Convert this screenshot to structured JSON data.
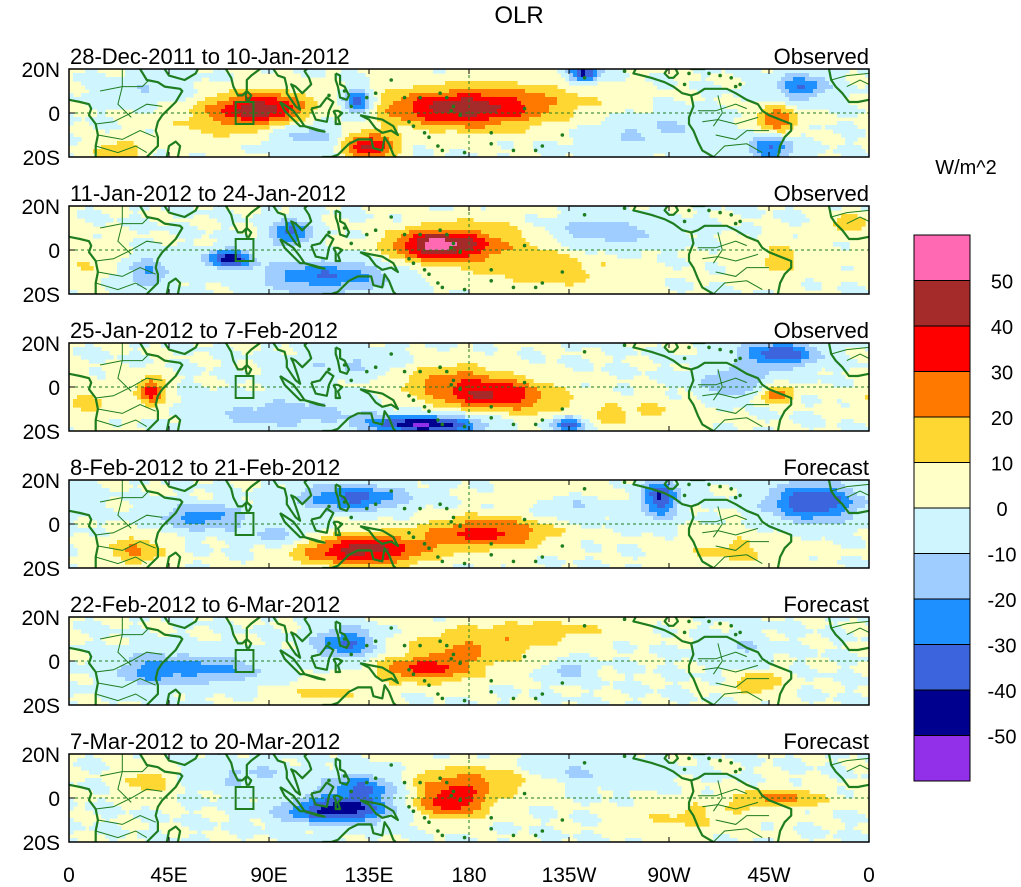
{
  "chart_data": {
    "type": "heatmap",
    "title": "OLR",
    "units": "W/m^2",
    "lat_range": [
      -20,
      20
    ],
    "lon_range": [
      0,
      360
    ],
    "lat_ticks": [
      "20N",
      "0",
      "20S"
    ],
    "lon_ticks": [
      {
        "lon": 0,
        "label": "0"
      },
      {
        "lon": 45,
        "label": "45E"
      },
      {
        "lon": 90,
        "label": "90E"
      },
      {
        "lon": 135,
        "label": "135E"
      },
      {
        "lon": 180,
        "label": "180"
      },
      {
        "lon": 225,
        "label": "135W"
      },
      {
        "lon": 270,
        "label": "90W"
      },
      {
        "lon": 315,
        "label": "45W"
      },
      {
        "lon": 360,
        "label": "0"
      }
    ],
    "colorbar": {
      "levels": [
        -50,
        -40,
        -30,
        -20,
        -10,
        0,
        10,
        20,
        30,
        40,
        50
      ],
      "colors": [
        "#9130e8",
        "#00008f",
        "#3c64dc",
        "#1e90ff",
        "#9fcdff",
        "#cff5ff",
        "#ffffc8",
        "#ffd732",
        "#ff7800",
        "#ff0000",
        "#a52a2a",
        "#ff69b4"
      ]
    },
    "reference_box": {
      "lon": [
        75,
        83
      ],
      "lat": [
        -5,
        5
      ]
    },
    "panels": [
      {
        "period": "28-Dec-2011 to 10-Jan-2012",
        "status": "Observed",
        "anomalies": [
          {
            "lon": 88,
            "lat": 2,
            "value": 40,
            "sx": 14,
            "sy": 5
          },
          {
            "lon": 70,
            "lat": -2,
            "value": 15,
            "sx": 20,
            "sy": 8
          },
          {
            "lon": 172,
            "lat": 2,
            "value": 35,
            "sx": 24,
            "sy": 6
          },
          {
            "lon": 200,
            "lat": 4,
            "value": 18,
            "sx": 30,
            "sy": 8
          },
          {
            "lon": 135,
            "lat": -15,
            "value": 45,
            "sx": 8,
            "sy": 4
          },
          {
            "lon": 22,
            "lat": -17,
            "value": 20,
            "sx": 8,
            "sy": 3
          },
          {
            "lon": 232,
            "lat": 18,
            "value": -45,
            "sx": 5,
            "sy": 3
          },
          {
            "lon": 130,
            "lat": 5,
            "value": -40,
            "sx": 5,
            "sy": 4
          },
          {
            "lon": 318,
            "lat": -3,
            "value": 30,
            "sx": 7,
            "sy": 4
          },
          {
            "lon": 316,
            "lat": -16,
            "value": -30,
            "sx": 7,
            "sy": 4
          },
          {
            "lon": 330,
            "lat": 12,
            "value": -30,
            "sx": 8,
            "sy": 4
          },
          {
            "lon": 105,
            "lat": -10,
            "value": -15,
            "sx": 14,
            "sy": 6
          },
          {
            "lon": 260,
            "lat": -8,
            "value": -12,
            "sx": 25,
            "sy": 6
          },
          {
            "lon": 40,
            "lat": 10,
            "value": -10,
            "sx": 14,
            "sy": 5
          }
        ]
      },
      {
        "period": "11-Jan-2012 to 24-Jan-2012",
        "status": "Observed",
        "anomalies": [
          {
            "lon": 165,
            "lat": 2,
            "value": 45,
            "sx": 14,
            "sy": 5
          },
          {
            "lon": 188,
            "lat": 4,
            "value": 18,
            "sx": 22,
            "sy": 7
          },
          {
            "lon": 72,
            "lat": -4,
            "value": -45,
            "sx": 7,
            "sy": 3
          },
          {
            "lon": 100,
            "lat": 8,
            "value": -35,
            "sx": 6,
            "sy": 4
          },
          {
            "lon": 115,
            "lat": -12,
            "value": -30,
            "sx": 20,
            "sy": 5
          },
          {
            "lon": 35,
            "lat": -10,
            "value": -20,
            "sx": 8,
            "sy": 5
          },
          {
            "lon": 240,
            "lat": 8,
            "value": -18,
            "sx": 20,
            "sy": 5
          },
          {
            "lon": 215,
            "lat": -10,
            "value": 15,
            "sx": 25,
            "sy": 6
          },
          {
            "lon": 320,
            "lat": -4,
            "value": 12,
            "sx": 15,
            "sy": 6
          },
          {
            "lon": 350,
            "lat": 12,
            "value": 20,
            "sx": 6,
            "sy": 3
          },
          {
            "lon": 10,
            "lat": -4,
            "value": 10,
            "sx": 10,
            "sy": 6
          }
        ]
      },
      {
        "period": "25-Jan-2012 to 7-Feb-2012",
        "status": "Observed",
        "anomalies": [
          {
            "lon": 192,
            "lat": -4,
            "value": 38,
            "sx": 18,
            "sy": 5
          },
          {
            "lon": 170,
            "lat": 4,
            "value": 20,
            "sx": 20,
            "sy": 6
          },
          {
            "lon": 160,
            "lat": -17,
            "value": -50,
            "sx": 18,
            "sy": 3
          },
          {
            "lon": 225,
            "lat": -17,
            "value": -40,
            "sx": 5,
            "sy": 3
          },
          {
            "lon": 37,
            "lat": -2,
            "value": 35,
            "sx": 4,
            "sy": 5
          },
          {
            "lon": 95,
            "lat": -12,
            "value": -15,
            "sx": 25,
            "sy": 5
          },
          {
            "lon": 320,
            "lat": 15,
            "value": -38,
            "sx": 12,
            "sy": 4
          },
          {
            "lon": 300,
            "lat": 2,
            "value": -20,
            "sx": 12,
            "sy": 5
          },
          {
            "lon": 318,
            "lat": -3,
            "value": 30,
            "sx": 6,
            "sy": 3
          },
          {
            "lon": 130,
            "lat": 10,
            "value": -12,
            "sx": 20,
            "sy": 5
          },
          {
            "lon": 250,
            "lat": -12,
            "value": 12,
            "sx": 25,
            "sy": 5
          },
          {
            "lon": 10,
            "lat": -6,
            "value": 12,
            "sx": 12,
            "sy": 6
          }
        ]
      },
      {
        "period": "8-Feb-2012 to 21-Feb-2012",
        "status": "Forecast",
        "anomalies": [
          {
            "lon": 132,
            "lat": -12,
            "value": 45,
            "sx": 20,
            "sy": 5
          },
          {
            "lon": 188,
            "lat": -4,
            "value": 35,
            "sx": 20,
            "sy": 5
          },
          {
            "lon": 266,
            "lat": 12,
            "value": -40,
            "sx": 6,
            "sy": 6
          },
          {
            "lon": 335,
            "lat": 10,
            "value": -42,
            "sx": 14,
            "sy": 6
          },
          {
            "lon": 128,
            "lat": 12,
            "value": -35,
            "sx": 16,
            "sy": 4
          },
          {
            "lon": 60,
            "lat": 3,
            "value": -25,
            "sx": 14,
            "sy": 4
          },
          {
            "lon": 30,
            "lat": -12,
            "value": 20,
            "sx": 10,
            "sy": 5
          },
          {
            "lon": 95,
            "lat": -5,
            "value": -15,
            "sx": 12,
            "sy": 4
          },
          {
            "lon": 228,
            "lat": 10,
            "value": -15,
            "sx": 12,
            "sy": 5
          },
          {
            "lon": 225,
            "lat": 14,
            "value": 12,
            "sx": 18,
            "sy": 4
          },
          {
            "lon": 300,
            "lat": -12,
            "value": 12,
            "sx": 20,
            "sy": 6
          }
        ]
      },
      {
        "period": "22-Feb-2012 to 6-Mar-2012",
        "status": "Forecast",
        "anomalies": [
          {
            "lon": 160,
            "lat": -4,
            "value": 32,
            "sx": 15,
            "sy": 4
          },
          {
            "lon": 180,
            "lat": 6,
            "value": 20,
            "sx": 22,
            "sy": 6
          },
          {
            "lon": 125,
            "lat": 8,
            "value": -32,
            "sx": 10,
            "sy": 5
          },
          {
            "lon": 60,
            "lat": -4,
            "value": -22,
            "sx": 22,
            "sy": 5
          },
          {
            "lon": 225,
            "lat": -4,
            "value": -18,
            "sx": 6,
            "sy": 3
          },
          {
            "lon": 300,
            "lat": 5,
            "value": -12,
            "sx": 10,
            "sy": 5
          },
          {
            "lon": 310,
            "lat": -10,
            "value": 18,
            "sx": 8,
            "sy": 4
          },
          {
            "lon": 35,
            "lat": -4,
            "value": -12,
            "sx": 10,
            "sy": 6
          },
          {
            "lon": 215,
            "lat": 14,
            "value": 12,
            "sx": 25,
            "sy": 4
          },
          {
            "lon": 115,
            "lat": -14,
            "value": 12,
            "sx": 14,
            "sy": 4
          }
        ]
      },
      {
        "period": "7-Mar-2012 to 20-Mar-2012",
        "status": "Forecast",
        "anomalies": [
          {
            "lon": 120,
            "lat": -6,
            "value": -45,
            "sx": 16,
            "sy": 4
          },
          {
            "lon": 132,
            "lat": 4,
            "value": -32,
            "sx": 12,
            "sy": 5
          },
          {
            "lon": 172,
            "lat": -2,
            "value": 35,
            "sx": 12,
            "sy": 5
          },
          {
            "lon": 182,
            "lat": 8,
            "value": 22,
            "sx": 22,
            "sy": 5
          },
          {
            "lon": 320,
            "lat": 0,
            "value": 25,
            "sx": 14,
            "sy": 3
          },
          {
            "lon": 35,
            "lat": 8,
            "value": 15,
            "sx": 8,
            "sy": 5
          },
          {
            "lon": 80,
            "lat": 10,
            "value": -12,
            "sx": 14,
            "sy": 5
          },
          {
            "lon": 230,
            "lat": 12,
            "value": -12,
            "sx": 20,
            "sy": 5
          },
          {
            "lon": 280,
            "lat": -8,
            "value": 12,
            "sx": 20,
            "sy": 5
          }
        ]
      }
    ]
  }
}
